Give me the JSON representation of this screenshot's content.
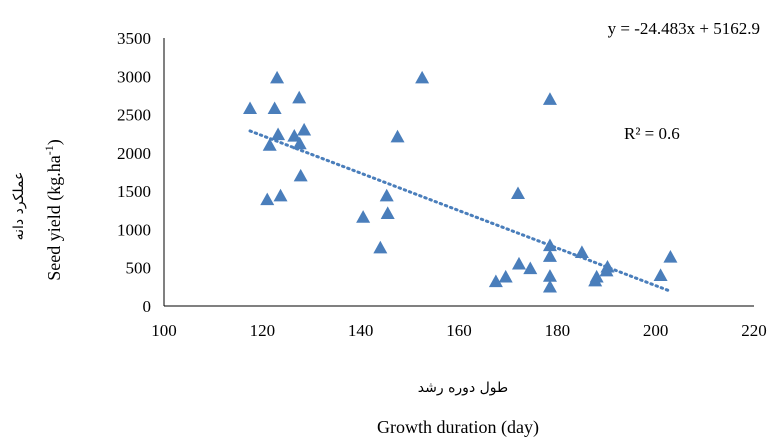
{
  "chart_data": {
    "type": "scatter",
    "xlabel_fa": "طول دوره رشد",
    "xlabel": "Growth duration (day)",
    "ylabel_fa": "عملکرد دانه",
    "ylabel_main": "Seed  yield (kg.ha",
    "ylabel_sup": "-1",
    "ylabel_close": ")",
    "xlim": [
      100,
      220
    ],
    "ylim": [
      0,
      3500
    ],
    "xticks": [
      100,
      120,
      140,
      160,
      180,
      200,
      220
    ],
    "yticks": [
      0,
      500,
      1000,
      1500,
      2000,
      2500,
      3000,
      3500
    ],
    "marker_color": "#4a7ebb",
    "trend_color": "#4a7ebb",
    "trendline": {
      "slope": -24.483,
      "intercept": 5162.9,
      "x_range": [
        117.5,
        202.5
      ]
    },
    "equation_text": "y = -24.483x + 5162.9",
    "r2_text": "R² = 0.6",
    "points": [
      {
        "x": 117.5,
        "y": 2580
      },
      {
        "x": 121,
        "y": 1390
      },
      {
        "x": 121.5,
        "y": 2100
      },
      {
        "x": 122.5,
        "y": 2580
      },
      {
        "x": 123,
        "y": 2980
      },
      {
        "x": 123.2,
        "y": 2240
      },
      {
        "x": 123.7,
        "y": 1440
      },
      {
        "x": 126.5,
        "y": 2220
      },
      {
        "x": 127.5,
        "y": 2720
      },
      {
        "x": 127.6,
        "y": 2120
      },
      {
        "x": 127.8,
        "y": 1700
      },
      {
        "x": 128.5,
        "y": 2300
      },
      {
        "x": 140.5,
        "y": 1160
      },
      {
        "x": 144,
        "y": 760
      },
      {
        "x": 145.3,
        "y": 1440
      },
      {
        "x": 145.5,
        "y": 1210
      },
      {
        "x": 147.5,
        "y": 2210
      },
      {
        "x": 152.5,
        "y": 2980
      },
      {
        "x": 167.5,
        "y": 320
      },
      {
        "x": 169.5,
        "y": 380
      },
      {
        "x": 172,
        "y": 1470
      },
      {
        "x": 172.2,
        "y": 550
      },
      {
        "x": 174.5,
        "y": 490
      },
      {
        "x": 178.5,
        "y": 2700
      },
      {
        "x": 178.5,
        "y": 790
      },
      {
        "x": 178.5,
        "y": 650
      },
      {
        "x": 178.5,
        "y": 390
      },
      {
        "x": 178.5,
        "y": 250
      },
      {
        "x": 185,
        "y": 700
      },
      {
        "x": 187.7,
        "y": 330
      },
      {
        "x": 188,
        "y": 380
      },
      {
        "x": 190,
        "y": 460
      },
      {
        "x": 190.2,
        "y": 510
      },
      {
        "x": 201,
        "y": 400
      },
      {
        "x": 203,
        "y": 640
      }
    ]
  }
}
